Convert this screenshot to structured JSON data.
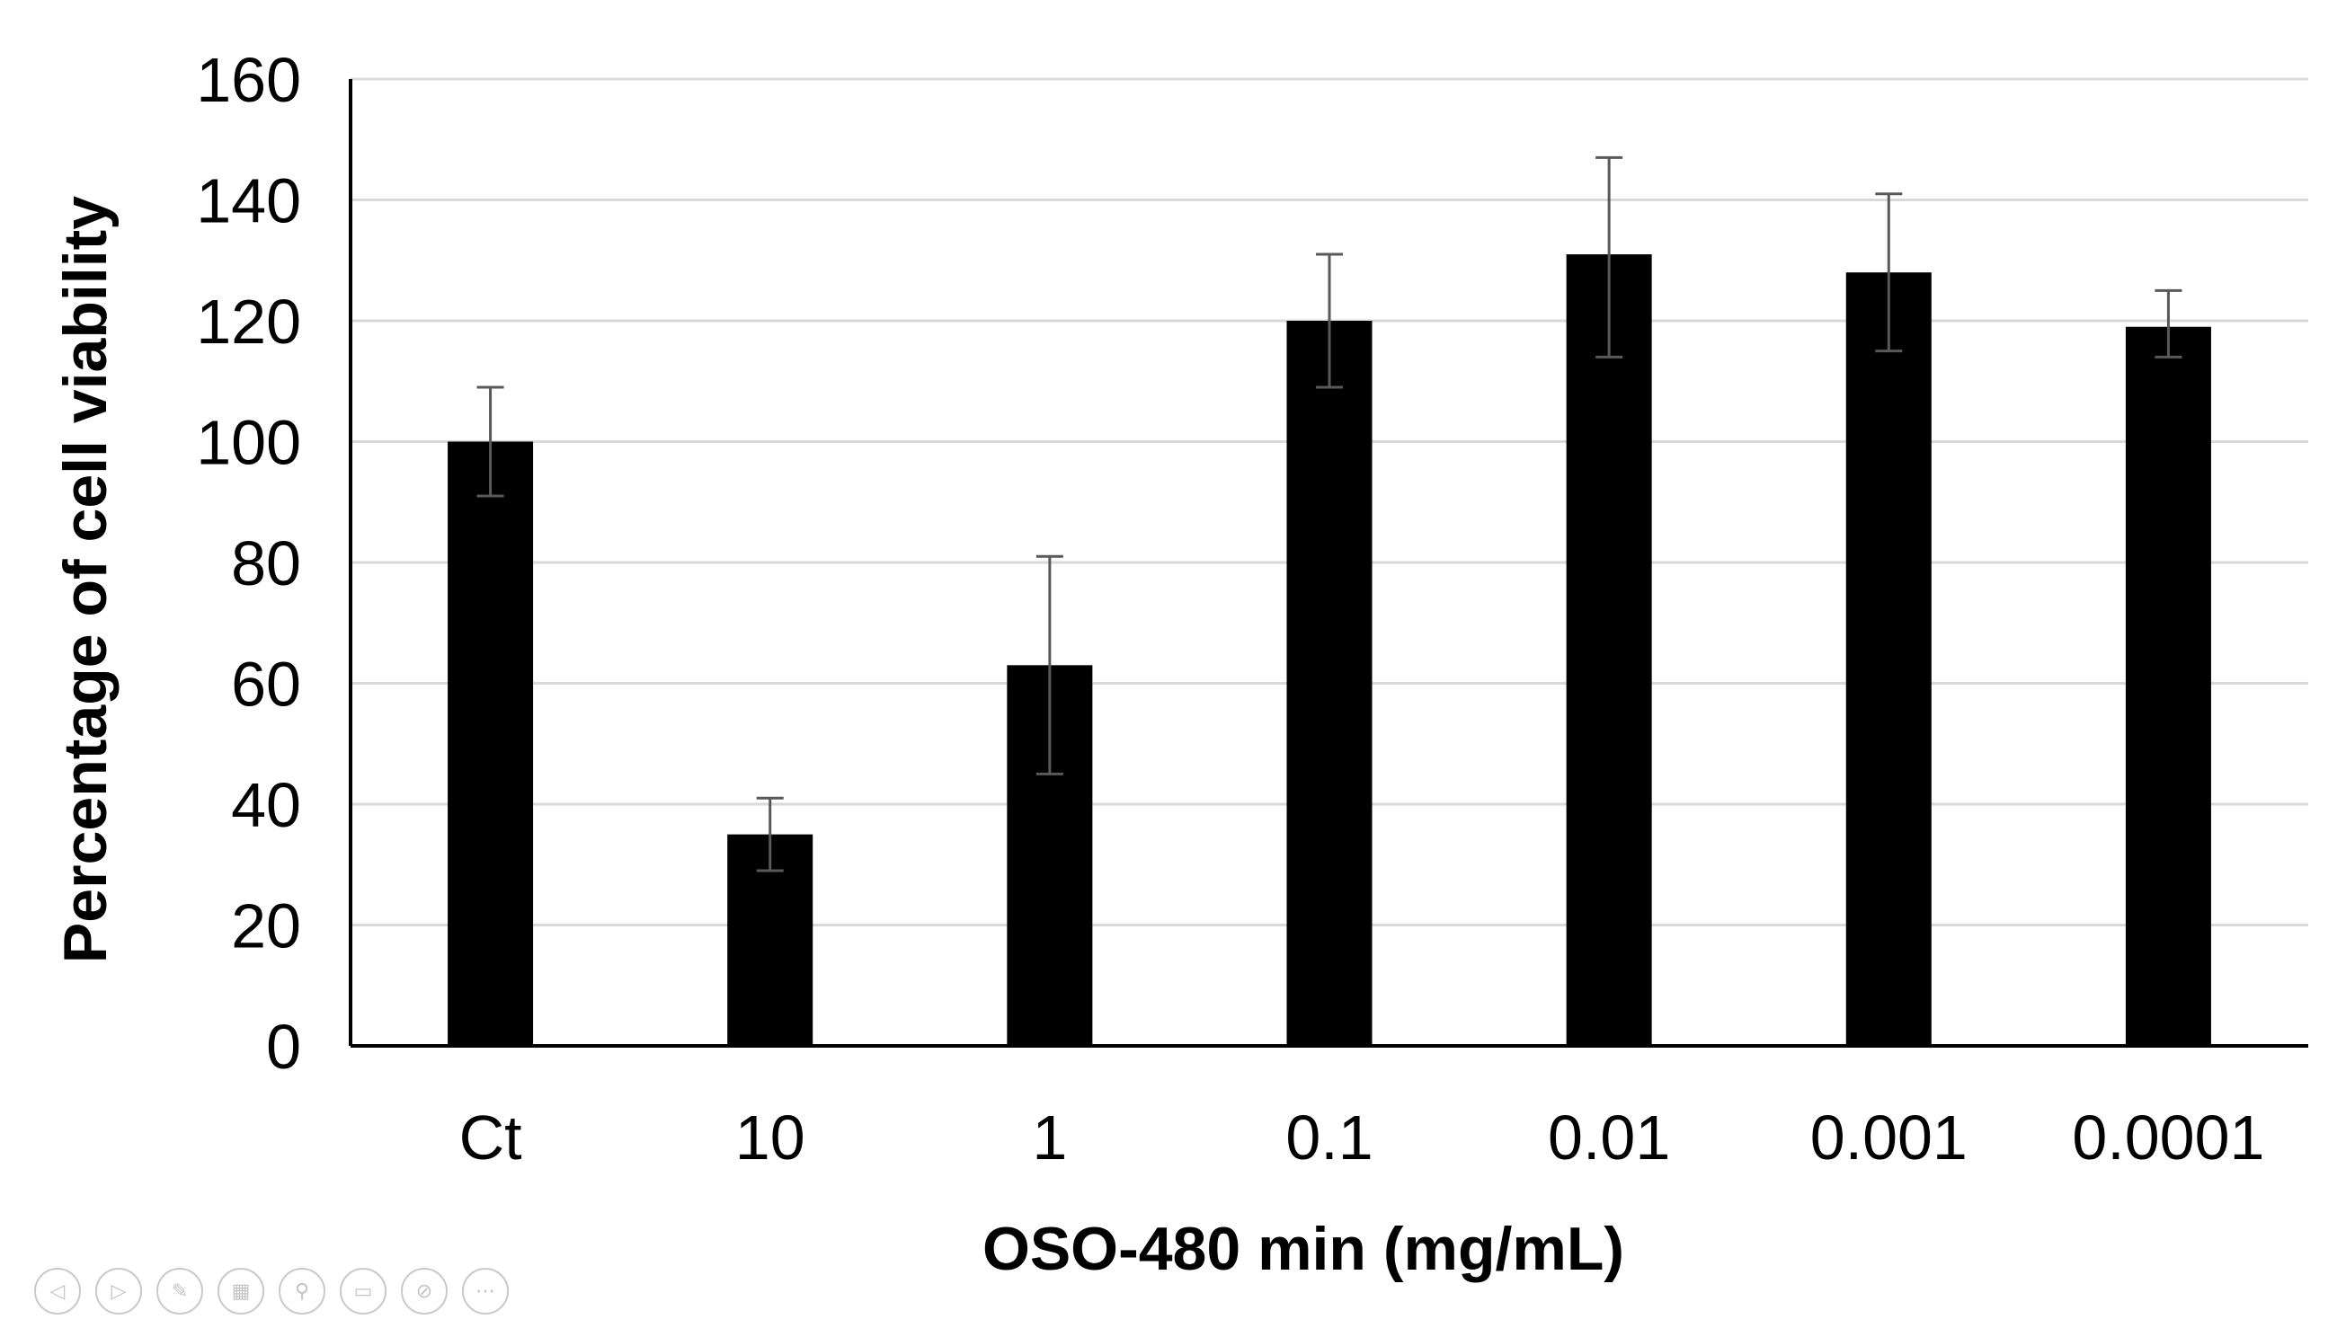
{
  "chart_data": {
    "type": "bar",
    "title": "",
    "xlabel": "OSO-480 min (mg/mL)",
    "ylabel": "Percentage of cell viability",
    "categories": [
      "Ct",
      "10",
      "1",
      "0.1",
      "0.01",
      "0.001",
      "0.0001"
    ],
    "values": [
      100,
      35,
      63,
      120,
      131,
      128,
      119
    ],
    "error_high": [
      109,
      41,
      81,
      131,
      147,
      141,
      125
    ],
    "error_low": [
      91,
      29,
      45,
      109,
      114,
      115,
      114
    ],
    "yticks": [
      0,
      20,
      40,
      60,
      80,
      100,
      120,
      140,
      160
    ],
    "ylim": [
      0,
      160
    ],
    "grid": true,
    "legend": "none",
    "bar_color": "#000000",
    "grid_color": "#d9d9d9",
    "error_bar_color": "#595959"
  },
  "toolbar": {
    "icons": [
      {
        "name": "previous-slide-icon",
        "glyph": "◁"
      },
      {
        "name": "next-slide-icon",
        "glyph": "▷"
      },
      {
        "name": "pen-icon",
        "glyph": "✎"
      },
      {
        "name": "slides-grid-icon",
        "glyph": "▦"
      },
      {
        "name": "zoom-icon",
        "glyph": "⚲"
      },
      {
        "name": "subtitles-icon",
        "glyph": "▭"
      },
      {
        "name": "camera-off-icon",
        "glyph": "⊘"
      },
      {
        "name": "more-options-icon",
        "glyph": "⋯"
      }
    ]
  }
}
